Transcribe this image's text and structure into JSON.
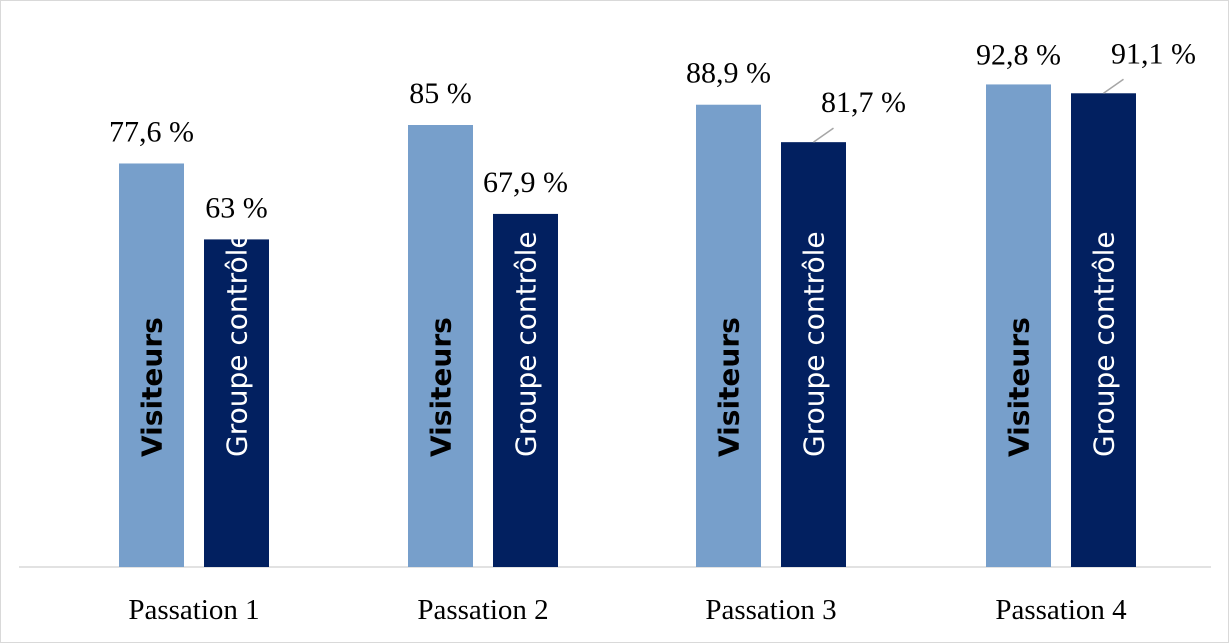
{
  "chart_data": {
    "type": "bar",
    "categories": [
      "Passation 1",
      "Passation 2",
      "Passation 3",
      "Passation 4"
    ],
    "series": [
      {
        "name": "Visiteurs",
        "values": [
          77.6,
          85,
          88.9,
          92.8
        ],
        "value_labels": [
          "77,6 %",
          "85 %",
          "88,9 %",
          "92,8 %"
        ],
        "color": "#779fcb",
        "label_color": "#000000",
        "label_bold": true
      },
      {
        "name": "Groupe contrôle",
        "values": [
          63,
          67.9,
          81.7,
          91.1
        ],
        "value_labels": [
          "63 %",
          "67,9 %",
          "81,7 %",
          "91,1 %"
        ],
        "color": "#022060",
        "label_color": "#ffffff",
        "label_bold": false
      }
    ],
    "title": "",
    "xlabel": "",
    "ylabel": "",
    "ylim": [
      0,
      100
    ],
    "grid": false,
    "legend": "none"
  }
}
